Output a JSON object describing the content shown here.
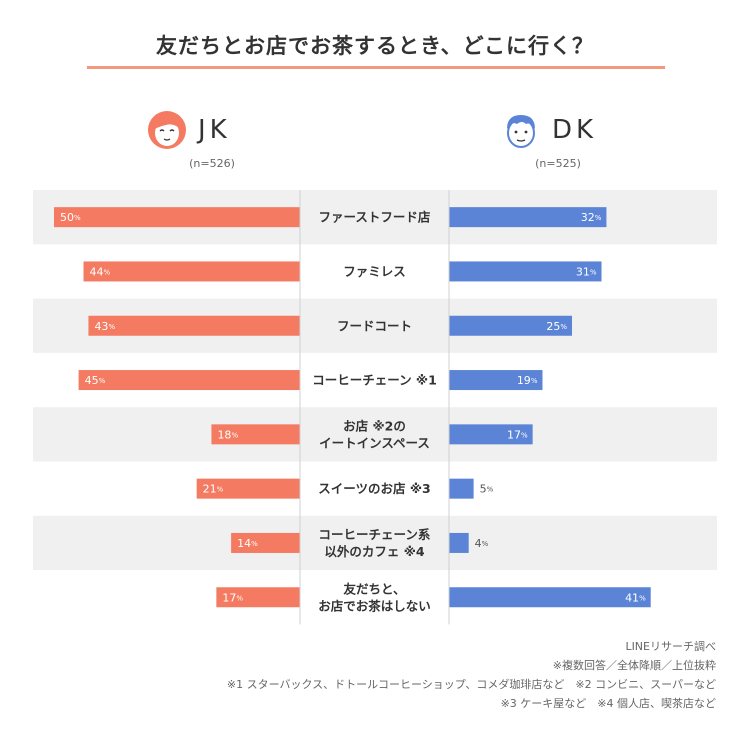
{
  "title": "友だちとお店でお茶するとき、どこに行く？",
  "groups": {
    "jk": {
      "name": "JK",
      "n": "(n=526)"
    },
    "dk": {
      "name": "DK",
      "n": "(n=525)"
    }
  },
  "colors": {
    "jk": "#f47b62",
    "dk": "#5b84d6",
    "row_shade": "#f0f0f0",
    "title_rule": "#f39880"
  },
  "chart_data": {
    "type": "bar",
    "orientation": "horizontal-butterfly",
    "unit": "%",
    "categories": [
      [
        "ファーストフード店"
      ],
      [
        "ファミレス"
      ],
      [
        "フードコート"
      ],
      [
        "コーヒーチェーン ※1"
      ],
      [
        "お店 ※2の",
        "イートインスペース"
      ],
      [
        "スイーツのお店 ※3"
      ],
      [
        "コーヒーチェーン系",
        "以外のカフェ ※4"
      ],
      [
        "友だちと、",
        "お店でお茶はしない"
      ]
    ],
    "series": [
      {
        "name": "JK",
        "values": [
          50,
          44,
          43,
          45,
          18,
          21,
          14,
          17
        ]
      },
      {
        "name": "DK",
        "values": [
          32,
          31,
          25,
          19,
          17,
          5,
          4,
          41
        ]
      }
    ],
    "xlim": [
      0,
      50
    ]
  },
  "notes": [
    "LINEリサーチ調べ",
    "※複数回答／全体降順／上位抜粋",
    "※1 スターバックス、ドトールコーヒーショップ、コメダ珈琲店など　※2 コンビニ、スーパーなど",
    "※3 ケーキ屋など　※4 個人店、喫茶店など"
  ]
}
